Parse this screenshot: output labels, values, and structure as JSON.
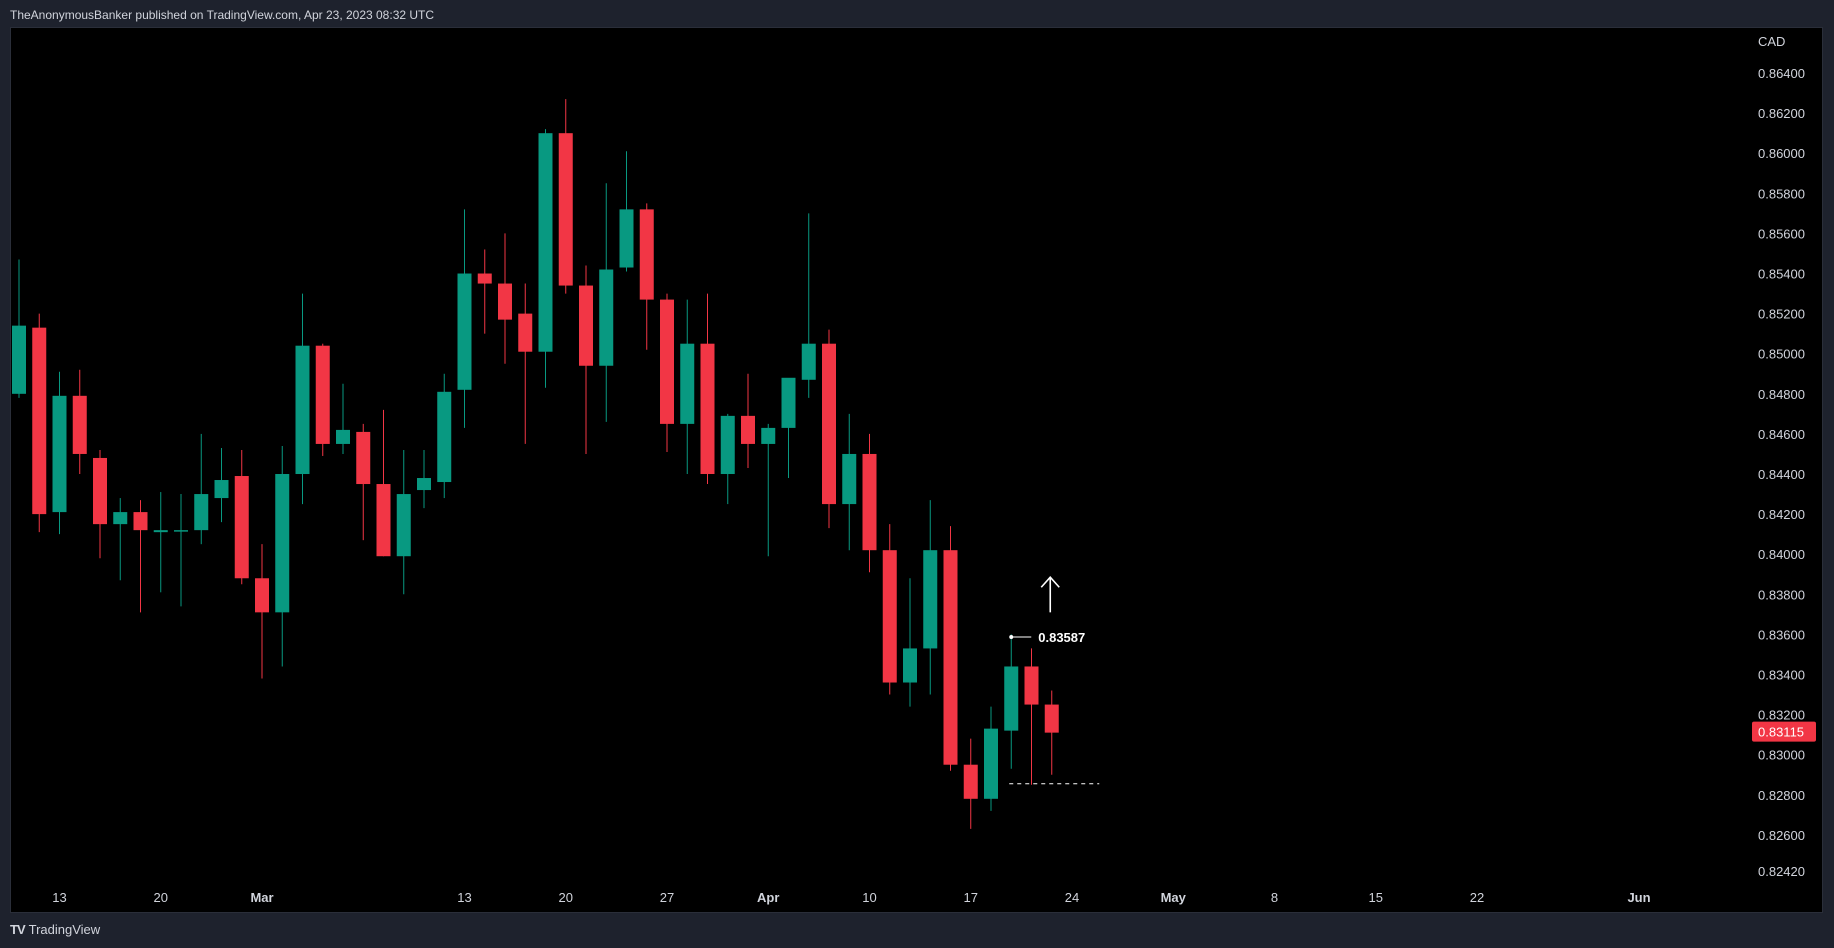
{
  "header": {
    "published_text": "TheAnonymousBanker published on TradingView.com, Apr 23, 2023 08:32 UTC"
  },
  "footer": {
    "logo_glyph": "TV",
    "brand": "TradingView"
  },
  "colors": {
    "up": "#089981",
    "down": "#f23645",
    "background": "#000000",
    "text": "#d1d4dc",
    "annotation": "#ffffff",
    "price_badge": "#f23645"
  },
  "chart_data": {
    "type": "candlestick",
    "currency": "CAD",
    "ylim": [
      0.8236,
      0.8648
    ],
    "y_ticks": [
      "0.86400",
      "0.86200",
      "0.86000",
      "0.85800",
      "0.85600",
      "0.85400",
      "0.85200",
      "0.85000",
      "0.84800",
      "0.84600",
      "0.84400",
      "0.84200",
      "0.84000",
      "0.83800",
      "0.83600",
      "0.83400",
      "0.83200",
      "0.83000",
      "0.82800",
      "0.82600",
      "0.82420"
    ],
    "x_ticks": [
      {
        "label": "13",
        "index": 2
      },
      {
        "label": "20",
        "index": 7
      },
      {
        "label": "Mar",
        "index": 12,
        "bold": true
      },
      {
        "label": "13",
        "index": 22
      },
      {
        "label": "20",
        "index": 27
      },
      {
        "label": "27",
        "index": 32
      },
      {
        "label": "Apr",
        "index": 37,
        "bold": true
      },
      {
        "label": "10",
        "index": 42
      },
      {
        "label": "17",
        "index": 47
      },
      {
        "label": "24",
        "index": 52
      },
      {
        "label": "May",
        "index": 57,
        "bold": true
      },
      {
        "label": "8",
        "index": 62
      },
      {
        "label": "15",
        "index": 67
      },
      {
        "label": "22",
        "index": 72
      },
      {
        "label": "Jun",
        "index": 80,
        "bold": true
      }
    ],
    "candles": [
      [
        0.848,
        0.8547,
        0.8478,
        0.8514
      ],
      [
        0.8513,
        0.852,
        0.8411,
        0.842
      ],
      [
        0.8421,
        0.8491,
        0.841,
        0.8479
      ],
      [
        0.8479,
        0.8492,
        0.844,
        0.845
      ],
      [
        0.8448,
        0.8452,
        0.8398,
        0.8415
      ],
      [
        0.8415,
        0.8428,
        0.8387,
        0.8421
      ],
      [
        0.8421,
        0.8427,
        0.8371,
        0.8412
      ],
      [
        0.8411,
        0.8431,
        0.8381,
        0.8412
      ],
      [
        0.8412,
        0.843,
        0.8374,
        0.8412
      ],
      [
        0.8412,
        0.846,
        0.8405,
        0.843
      ],
      [
        0.8428,
        0.8453,
        0.8416,
        0.8437
      ],
      [
        0.8439,
        0.8452,
        0.8385,
        0.8388
      ],
      [
        0.8388,
        0.8405,
        0.8338,
        0.8371
      ],
      [
        0.8371,
        0.8454,
        0.8344,
        0.844
      ],
      [
        0.844,
        0.853,
        0.8425,
        0.8504
      ],
      [
        0.8504,
        0.8505,
        0.8449,
        0.8455
      ],
      [
        0.8455,
        0.8485,
        0.845,
        0.8462
      ],
      [
        0.8461,
        0.8465,
        0.8407,
        0.8435
      ],
      [
        0.8435,
        0.8472,
        0.8399,
        0.8399
      ],
      [
        0.8399,
        0.8452,
        0.838,
        0.843
      ],
      [
        0.8432,
        0.8452,
        0.8423,
        0.8438
      ],
      [
        0.8436,
        0.849,
        0.8428,
        0.8481
      ],
      [
        0.8482,
        0.8572,
        0.8463,
        0.854
      ],
      [
        0.854,
        0.8552,
        0.851,
        0.8535
      ],
      [
        0.8535,
        0.856,
        0.8495,
        0.8517
      ],
      [
        0.852,
        0.8535,
        0.8455,
        0.8501
      ],
      [
        0.8501,
        0.8612,
        0.8483,
        0.861
      ],
      [
        0.861,
        0.8627,
        0.853,
        0.8534
      ],
      [
        0.8534,
        0.8544,
        0.845,
        0.8494
      ],
      [
        0.8494,
        0.8585,
        0.8466,
        0.8542
      ],
      [
        0.8543,
        0.8601,
        0.8541,
        0.8572
      ],
      [
        0.8572,
        0.8575,
        0.8502,
        0.8527
      ],
      [
        0.8527,
        0.853,
        0.8451,
        0.8465
      ],
      [
        0.8465,
        0.8527,
        0.844,
        0.8505
      ],
      [
        0.8505,
        0.853,
        0.8435,
        0.844
      ],
      [
        0.844,
        0.847,
        0.8425,
        0.8469
      ],
      [
        0.8469,
        0.849,
        0.8443,
        0.8455
      ],
      [
        0.8455,
        0.8465,
        0.8399,
        0.8463
      ],
      [
        0.8463,
        0.8485,
        0.8438,
        0.8488
      ],
      [
        0.8487,
        0.857,
        0.8478,
        0.8505
      ],
      [
        0.8505,
        0.8512,
        0.8413,
        0.8425
      ],
      [
        0.8425,
        0.847,
        0.8402,
        0.845
      ],
      [
        0.845,
        0.846,
        0.8391,
        0.8402
      ],
      [
        0.8402,
        0.8415,
        0.833,
        0.8336
      ],
      [
        0.8336,
        0.8388,
        0.8324,
        0.8353
      ],
      [
        0.8353,
        0.8427,
        0.833,
        0.8402
      ],
      [
        0.8402,
        0.8414,
        0.8292,
        0.8295
      ],
      [
        0.8295,
        0.8308,
        0.8263,
        0.8278
      ],
      [
        0.8278,
        0.8324,
        0.8272,
        0.8313
      ],
      [
        0.8312,
        0.836,
        0.8293,
        0.8344
      ],
      [
        0.8344,
        0.8353,
        0.8285,
        0.8325
      ],
      [
        0.8325,
        0.8332,
        0.829,
        0.8311
      ]
    ],
    "annotations": {
      "price_label": "0.83587",
      "price_value": 0.83587,
      "current_price": "0.83115",
      "current_value": 0.83115,
      "support_level": 0.82855,
      "arrow_direction": "up"
    }
  }
}
